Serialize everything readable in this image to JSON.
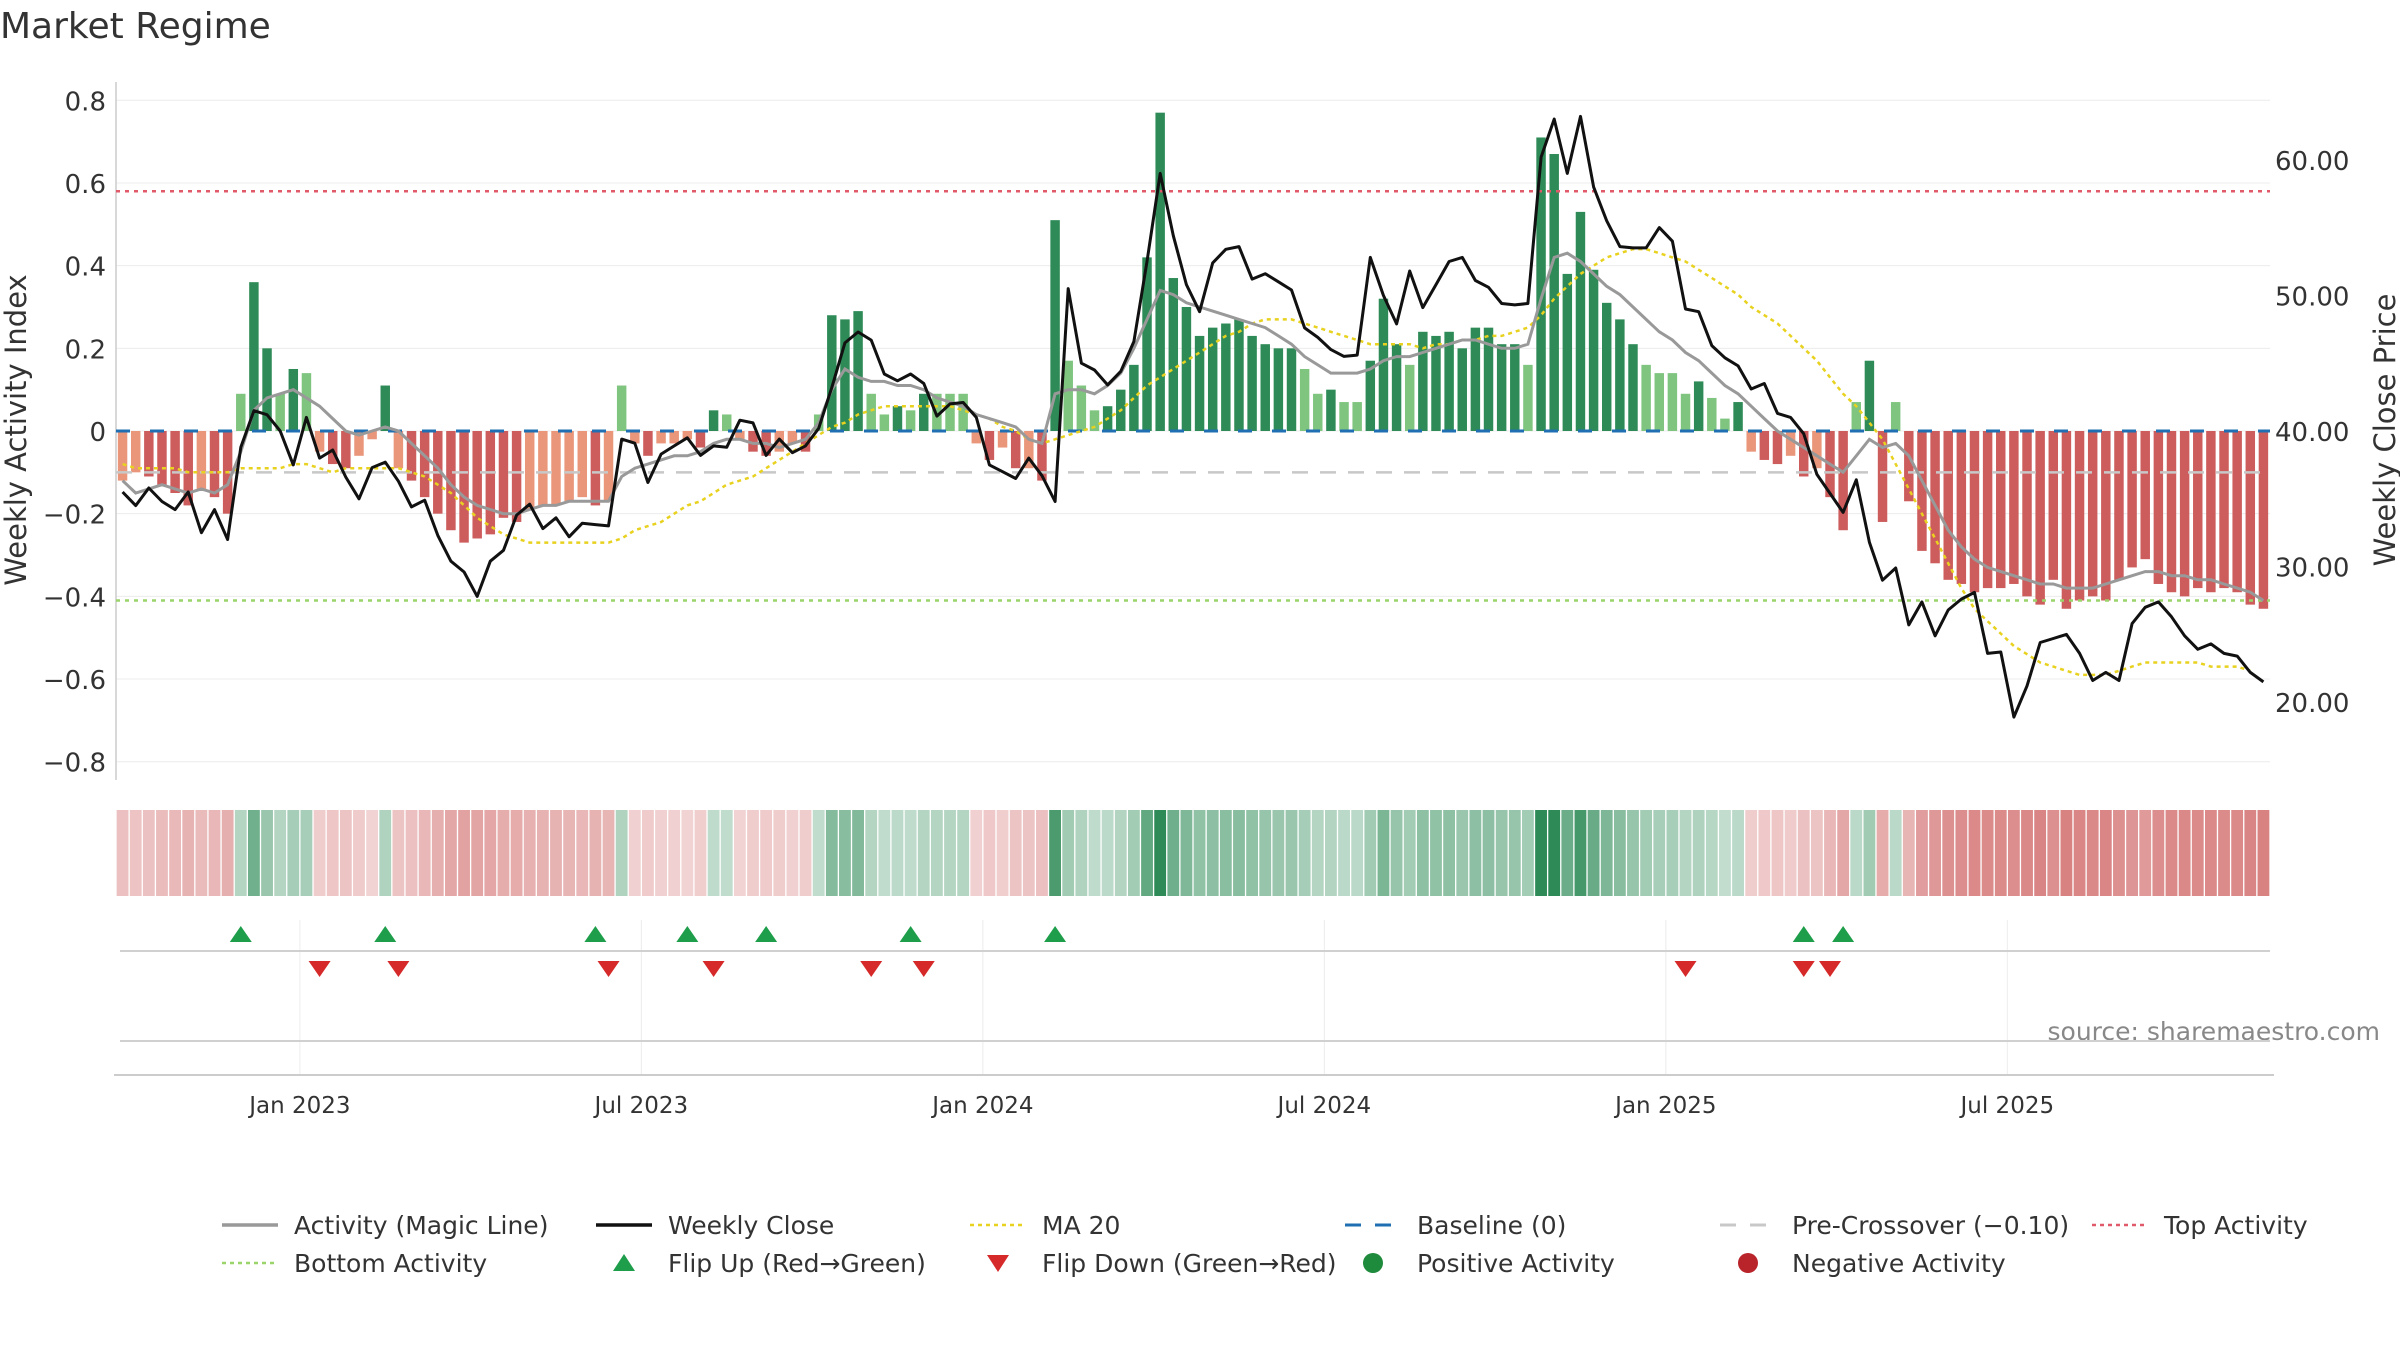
{
  "title": "Market Regime",
  "source": "source: sharemaestro.com",
  "axes": {
    "y_left_label": "Weekly Activity Index",
    "y_right_label": "Weekly Close Price",
    "y_left_ticks": [
      "0.8",
      "0.6",
      "0.4",
      "0.2",
      "0",
      "−0.2",
      "−0.4",
      "−0.6",
      "−0.8"
    ],
    "y_right_ticks": [
      "60.00",
      "50.00",
      "40.00",
      "30.00",
      "20.00"
    ],
    "x_ticks": [
      "Jan 2023",
      "Jul 2023",
      "Jan 2024",
      "Jul 2024",
      "Jan 2025",
      "Jul 2025"
    ]
  },
  "legend": [
    {
      "label": "Activity (Magic Line)",
      "kind": "line",
      "color": "#999999"
    },
    {
      "label": "Weekly Close",
      "kind": "line",
      "color": "#111111"
    },
    {
      "label": "MA 20",
      "kind": "dot",
      "color": "#e8d21f"
    },
    {
      "label": "Baseline (0)",
      "kind": "dash",
      "color": "#1f6fb2"
    },
    {
      "label": "Pre-Crossover (−0.10)",
      "kind": "dash",
      "color": "#c8c8c8"
    },
    {
      "label": "Top Activity",
      "kind": "dot",
      "color": "#e05a6a"
    },
    {
      "label": "Bottom Activity",
      "kind": "dot",
      "color": "#9ad46a"
    },
    {
      "label": "Flip Up (Red→Green)",
      "kind": "tri-up",
      "color": "#1e9e4a"
    },
    {
      "label": "Flip Down (Green→Red)",
      "kind": "tri-down",
      "color": "#d62a2a"
    },
    {
      "label": "Positive Activity",
      "kind": "circle",
      "color": "#1e8a3c"
    },
    {
      "label": "Negative Activity",
      "kind": "circle",
      "color": "#b8242a"
    }
  ],
  "colors": {
    "pos_strong": "#2e8b57",
    "pos_light": "#7fc47f",
    "neg_strong": "#cd5c5c",
    "neg_light": "#e9967a",
    "close": "#111111",
    "magic": "#999999",
    "ma20": "#e8d21f",
    "baseline": "#1f6fb2",
    "pre": "#c8c8c8",
    "top": "#e05a6a",
    "bottom": "#9ad46a",
    "flip_up": "#1e9e4a",
    "flip_down": "#d62a2a"
  },
  "chart_data": {
    "type": "bar",
    "x_range": [
      "2022-09-26",
      "2025-09-29"
    ],
    "ylim_left": [
      -0.82,
      0.82
    ],
    "ylim_right": [
      15,
      65
    ],
    "top_activity": 0.58,
    "bottom_activity": -0.41,
    "baseline": 0,
    "pre_crossover": -0.1,
    "activity": [
      -0.12,
      -0.1,
      -0.11,
      -0.13,
      -0.15,
      -0.18,
      -0.14,
      -0.16,
      -0.2,
      0.09,
      0.36,
      0.2,
      0.09,
      0.15,
      0.14,
      -0.05,
      -0.08,
      -0.09,
      -0.06,
      -0.02,
      0.11,
      -0.09,
      -0.12,
      -0.16,
      -0.2,
      -0.24,
      -0.27,
      -0.26,
      -0.25,
      -0.21,
      -0.22,
      -0.19,
      -0.18,
      -0.18,
      -0.17,
      -0.16,
      -0.18,
      -0.17,
      0.11,
      -0.03,
      -0.06,
      -0.03,
      -0.03,
      -0.02,
      -0.04,
      0.05,
      0.04,
      -0.02,
      -0.05,
      -0.06,
      -0.05,
      -0.03,
      -0.05,
      0.04,
      0.28,
      0.27,
      0.29,
      0.09,
      0.04,
      0.06,
      0.05,
      0.09,
      0.09,
      0.09,
      0.09,
      -0.03,
      -0.07,
      -0.04,
      -0.09,
      -0.09,
      -0.12,
      0.51,
      0.17,
      0.11,
      0.05,
      0.06,
      0.1,
      0.16,
      0.42,
      0.77,
      0.37,
      0.3,
      0.23,
      0.25,
      0.26,
      0.27,
      0.23,
      0.21,
      0.2,
      0.2,
      0.15,
      0.09,
      0.1,
      0.07,
      0.07,
      0.17,
      0.32,
      0.21,
      0.16,
      0.24,
      0.23,
      0.24,
      0.2,
      0.25,
      0.25,
      0.21,
      0.21,
      0.16,
      0.71,
      0.67,
      0.38,
      0.53,
      0.39,
      0.31,
      0.27,
      0.21,
      0.16,
      0.14,
      0.14,
      0.09,
      0.12,
      0.08,
      0.03,
      0.07,
      -0.05,
      -0.07,
      -0.08,
      -0.06,
      -0.11,
      -0.09,
      -0.16,
      -0.24,
      0.07,
      0.17,
      -0.22,
      0.07,
      -0.17,
      -0.29,
      -0.32,
      -0.36,
      -0.37,
      -0.39,
      -0.38,
      -0.38,
      -0.37,
      -0.4,
      -0.42,
      -0.36,
      -0.43,
      -0.41,
      -0.4,
      -0.41,
      -0.36,
      -0.33,
      -0.31,
      -0.37,
      -0.39,
      -0.4,
      -0.38,
      -0.39,
      -0.38,
      -0.39,
      -0.42,
      -0.43
    ],
    "magic_line": [
      -0.12,
      -0.15,
      -0.14,
      -0.13,
      -0.14,
      -0.15,
      -0.14,
      -0.15,
      -0.13,
      -0.05,
      0.05,
      0.08,
      0.09,
      0.1,
      0.08,
      0.06,
      0.03,
      0.0,
      -0.01,
      0.0,
      0.01,
      0.0,
      -0.03,
      -0.06,
      -0.09,
      -0.13,
      -0.16,
      -0.18,
      -0.19,
      -0.2,
      -0.2,
      -0.19,
      -0.18,
      -0.18,
      -0.17,
      -0.17,
      -0.17,
      -0.17,
      -0.11,
      -0.09,
      -0.08,
      -0.07,
      -0.06,
      -0.06,
      -0.05,
      -0.03,
      -0.02,
      -0.02,
      -0.03,
      -0.03,
      -0.04,
      -0.03,
      -0.02,
      0.02,
      0.1,
      0.15,
      0.13,
      0.12,
      0.12,
      0.11,
      0.11,
      0.1,
      0.08,
      0.07,
      0.06,
      0.04,
      0.03,
      0.02,
      0.01,
      -0.02,
      -0.03,
      0.09,
      0.1,
      0.1,
      0.09,
      0.11,
      0.14,
      0.2,
      0.27,
      0.34,
      0.33,
      0.31,
      0.3,
      0.29,
      0.28,
      0.27,
      0.26,
      0.25,
      0.23,
      0.21,
      0.18,
      0.16,
      0.14,
      0.14,
      0.14,
      0.15,
      0.17,
      0.18,
      0.18,
      0.19,
      0.2,
      0.21,
      0.22,
      0.22,
      0.21,
      0.2,
      0.2,
      0.21,
      0.32,
      0.42,
      0.43,
      0.41,
      0.38,
      0.35,
      0.33,
      0.3,
      0.27,
      0.24,
      0.22,
      0.19,
      0.17,
      0.14,
      0.11,
      0.09,
      0.06,
      0.03,
      0.0,
      -0.02,
      -0.04,
      -0.06,
      -0.08,
      -0.1,
      -0.06,
      -0.02,
      -0.04,
      -0.03,
      -0.06,
      -0.12,
      -0.18,
      -0.24,
      -0.28,
      -0.31,
      -0.33,
      -0.34,
      -0.35,
      -0.36,
      -0.37,
      -0.37,
      -0.38,
      -0.38,
      -0.38,
      -0.37,
      -0.36,
      -0.35,
      -0.34,
      -0.34,
      -0.35,
      -0.35,
      -0.36,
      -0.36,
      -0.37,
      -0.38,
      -0.39,
      -0.41
    ],
    "close": [
      35.5,
      34.5,
      35.8,
      34.8,
      34.2,
      35.5,
      32.5,
      34.2,
      32.0,
      38.8,
      41.5,
      41.2,
      40.0,
      37.5,
      41.0,
      38.0,
      38.6,
      36.6,
      35.0,
      37.3,
      37.7,
      36.3,
      34.4,
      34.9,
      32.3,
      30.4,
      29.6,
      27.8,
      30.4,
      31.2,
      33.8,
      34.6,
      32.8,
      33.6,
      32.2,
      33.2,
      33.1,
      33.0,
      39.4,
      39.1,
      36.2,
      38.3,
      38.9,
      39.5,
      38.2,
      38.9,
      38.8,
      40.8,
      40.6,
      38.2,
      39.4,
      38.4,
      38.9,
      40.2,
      43.2,
      46.5,
      47.3,
      46.7,
      44.2,
      43.7,
      44.2,
      43.5,
      41.1,
      42.0,
      42.1,
      41.0,
      37.5,
      37.0,
      36.5,
      38.0,
      36.7,
      34.8,
      50.5,
      45.0,
      44.5,
      43.4,
      44.4,
      46.6,
      52.5,
      59.0,
      54.4,
      50.8,
      48.8,
      52.4,
      53.4,
      53.6,
      51.2,
      51.6,
      51.0,
      50.4,
      47.6,
      46.9,
      46.0,
      45.5,
      45.6,
      52.8,
      50.0,
      47.9,
      51.8,
      49.1,
      50.8,
      52.5,
      52.8,
      51.1,
      50.6,
      49.4,
      49.3,
      49.4,
      60.2,
      63.0,
      59.0,
      63.2,
      58.0,
      55.5,
      53.6,
      53.5,
      53.5,
      55.0,
      54.0,
      49.0,
      48.8,
      46.3,
      45.4,
      44.8,
      43.1,
      43.5,
      41.3,
      41.0,
      39.8,
      36.8,
      35.4,
      34.0,
      36.4,
      31.8,
      29.0,
      29.9,
      25.7,
      27.4,
      24.9,
      26.8,
      27.6,
      28.1,
      23.6,
      23.7,
      18.9,
      21.2,
      24.4,
      24.7,
      25.0,
      23.6,
      21.6,
      22.2,
      21.6,
      25.8,
      27.0,
      27.4,
      26.3,
      24.9,
      23.9,
      24.3,
      23.6,
      23.4,
      22.2,
      21.5
    ],
    "ma20": [
      -0.08,
      -0.09,
      -0.09,
      -0.09,
      -0.09,
      -0.1,
      -0.1,
      -0.1,
      -0.1,
      -0.09,
      -0.09,
      -0.09,
      -0.09,
      -0.08,
      -0.08,
      -0.09,
      -0.1,
      -0.09,
      -0.09,
      -0.09,
      -0.09,
      -0.09,
      -0.1,
      -0.11,
      -0.13,
      -0.15,
      -0.18,
      -0.21,
      -0.23,
      -0.25,
      -0.26,
      -0.27,
      -0.27,
      -0.27,
      -0.27,
      -0.27,
      -0.27,
      -0.27,
      -0.26,
      -0.24,
      -0.23,
      -0.22,
      -0.2,
      -0.18,
      -0.17,
      -0.15,
      -0.13,
      -0.12,
      -0.11,
      -0.09,
      -0.07,
      -0.05,
      -0.03,
      -0.01,
      0.01,
      0.02,
      0.04,
      0.05,
      0.06,
      0.06,
      0.06,
      0.06,
      0.06,
      0.06,
      0.05,
      0.04,
      0.03,
      0.01,
      0.0,
      -0.02,
      -0.03,
      -0.02,
      -0.01,
      0.0,
      0.01,
      0.03,
      0.05,
      0.08,
      0.11,
      0.13,
      0.15,
      0.17,
      0.19,
      0.21,
      0.23,
      0.24,
      0.26,
      0.27,
      0.27,
      0.27,
      0.26,
      0.25,
      0.24,
      0.23,
      0.22,
      0.21,
      0.21,
      0.21,
      0.21,
      0.2,
      0.21,
      0.21,
      0.22,
      0.22,
      0.23,
      0.23,
      0.24,
      0.25,
      0.28,
      0.32,
      0.35,
      0.38,
      0.4,
      0.42,
      0.43,
      0.44,
      0.44,
      0.43,
      0.42,
      0.41,
      0.39,
      0.37,
      0.35,
      0.33,
      0.3,
      0.28,
      0.26,
      0.23,
      0.2,
      0.17,
      0.13,
      0.09,
      0.06,
      0.02,
      -0.02,
      -0.08,
      -0.14,
      -0.2,
      -0.26,
      -0.32,
      -0.38,
      -0.43,
      -0.46,
      -0.49,
      -0.52,
      -0.54,
      -0.56,
      -0.57,
      -0.58,
      -0.59,
      -0.59,
      -0.59,
      -0.58,
      -0.57,
      -0.56,
      -0.56,
      -0.56,
      -0.56,
      -0.56,
      -0.57,
      -0.57,
      -0.57,
      -0.58
    ],
    "flip_up_weeks": [
      9,
      20,
      36,
      43,
      49,
      60,
      71,
      128,
      131
    ],
    "flip_down_weeks": [
      15,
      21,
      37,
      45,
      57,
      61,
      119,
      128,
      130
    ],
    "x_tick_weeks": [
      14,
      40,
      66,
      92,
      118,
      144
    ]
  }
}
